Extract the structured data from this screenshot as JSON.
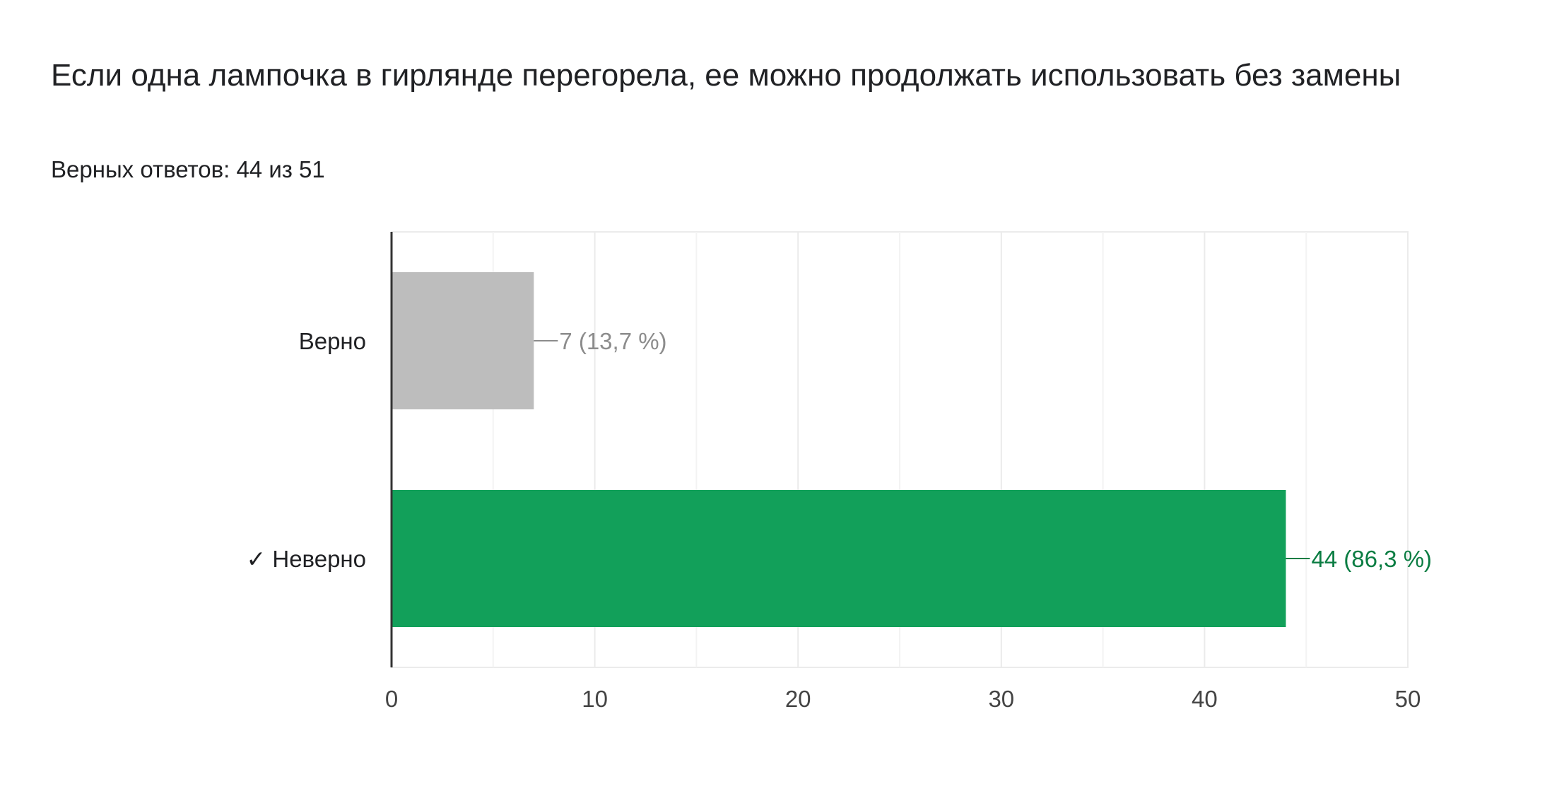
{
  "question": {
    "title": "Если одна лампочка в гирлянде перегорела, ее можно продолжать использовать без замены",
    "score": "Верных ответов: 44 из 51"
  },
  "colors": {
    "correct_bar": "#12a05a",
    "correct_label": "#0b7d43",
    "other_bar": "#bdbdbd",
    "other_label": "#8c8c8c",
    "grid": "#ebebeb",
    "axis": "#333333"
  },
  "chart_data": {
    "type": "bar",
    "orientation": "horizontal",
    "categories": [
      "Верно",
      "✓ Неверно"
    ],
    "values": [
      7,
      44
    ],
    "data_labels": [
      "7 (13,7 %)",
      "44 (86,3 %)"
    ],
    "correct": [
      false,
      true
    ],
    "xlim": [
      0,
      50
    ],
    "xticks": [
      0,
      10,
      20,
      30,
      40,
      50
    ],
    "minor_gridlines": [
      5,
      15,
      25,
      35,
      45
    ],
    "grid": true,
    "title": "",
    "xlabel": "",
    "ylabel": ""
  }
}
